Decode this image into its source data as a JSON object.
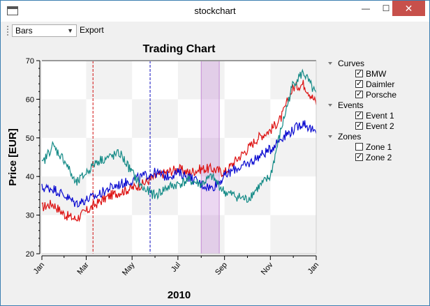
{
  "window": {
    "title": "stockchart",
    "close_glyph": "✕",
    "minimize_glyph": "—",
    "maximize_glyph": "☐"
  },
  "toolbar": {
    "combo_value": "Bars",
    "export_label": "Export"
  },
  "legend": {
    "groups": [
      {
        "label": "Curves",
        "items": [
          {
            "label": "BMW",
            "checked": true
          },
          {
            "label": "Daimler",
            "checked": true
          },
          {
            "label": "Porsche",
            "checked": true
          }
        ]
      },
      {
        "label": "Events",
        "items": [
          {
            "label": "Event 1",
            "checked": true
          },
          {
            "label": "Event 2",
            "checked": true
          }
        ]
      },
      {
        "label": "Zones",
        "items": [
          {
            "label": "Zone 1",
            "checked": false
          },
          {
            "label": "Zone 2",
            "checked": true
          }
        ]
      }
    ]
  },
  "chart_data": {
    "type": "line",
    "title": "Trading Chart",
    "xlabel": "2010",
    "ylabel": "Price [EUR]",
    "xlim": [
      "2010-01-01",
      "2011-01-01"
    ],
    "ylim": [
      20,
      70
    ],
    "x_ticks": [
      "Jan",
      "Mar",
      "May",
      "Jul",
      "Sep",
      "Nov",
      "Jan"
    ],
    "x_tick_dates": [
      "2010-01-01",
      "2010-03-01",
      "2010-05-01",
      "2010-07-01",
      "2010-09-01",
      "2010-11-01",
      "2011-01-01"
    ],
    "y_ticks": [
      20,
      30,
      40,
      50,
      60,
      70
    ],
    "events": [
      {
        "name": "Event 1",
        "date": "2010-03-10",
        "color": "#d01010"
      },
      {
        "name": "Event 2",
        "date": "2010-05-25",
        "color": "#1010c0"
      }
    ],
    "zones": [
      {
        "name": "Zone 2",
        "start": "2010-08-01",
        "end": "2010-08-25",
        "color": "#c58bd6"
      }
    ],
    "series": [
      {
        "name": "BMW",
        "color": "#dd1111",
        "points": [
          [
            "2010-01-01",
            32
          ],
          [
            "2010-01-15",
            33
          ],
          [
            "2010-02-01",
            30
          ],
          [
            "2010-02-15",
            29
          ],
          [
            "2010-03-01",
            31
          ],
          [
            "2010-03-15",
            33
          ],
          [
            "2010-04-01",
            35
          ],
          [
            "2010-04-15",
            36
          ],
          [
            "2010-05-01",
            37
          ],
          [
            "2010-05-15",
            38
          ],
          [
            "2010-06-01",
            40
          ],
          [
            "2010-06-15",
            41
          ],
          [
            "2010-07-01",
            42
          ],
          [
            "2010-07-15",
            41
          ],
          [
            "2010-08-01",
            42
          ],
          [
            "2010-08-15",
            42
          ],
          [
            "2010-09-01",
            41
          ],
          [
            "2010-09-15",
            44
          ],
          [
            "2010-10-01",
            47
          ],
          [
            "2010-10-15",
            50
          ],
          [
            "2010-11-01",
            52
          ],
          [
            "2010-11-15",
            55
          ],
          [
            "2010-12-01",
            63
          ],
          [
            "2010-12-15",
            64
          ],
          [
            "2011-01-01",
            59
          ]
        ]
      },
      {
        "name": "Daimler",
        "color": "#0a0ad0",
        "points": [
          [
            "2010-01-01",
            37
          ],
          [
            "2010-01-15",
            37
          ],
          [
            "2010-02-01",
            35
          ],
          [
            "2010-02-15",
            33
          ],
          [
            "2010-03-01",
            34
          ],
          [
            "2010-03-15",
            35
          ],
          [
            "2010-04-01",
            37
          ],
          [
            "2010-04-15",
            38
          ],
          [
            "2010-05-01",
            39
          ],
          [
            "2010-05-15",
            40
          ],
          [
            "2010-06-01",
            41
          ],
          [
            "2010-06-15",
            40
          ],
          [
            "2010-07-01",
            41
          ],
          [
            "2010-07-15",
            40
          ],
          [
            "2010-08-01",
            38
          ],
          [
            "2010-08-15",
            37
          ],
          [
            "2010-09-01",
            40
          ],
          [
            "2010-09-15",
            42
          ],
          [
            "2010-10-01",
            43
          ],
          [
            "2010-10-15",
            45
          ],
          [
            "2010-11-01",
            47
          ],
          [
            "2010-11-15",
            50
          ],
          [
            "2010-12-01",
            52
          ],
          [
            "2010-12-15",
            54
          ],
          [
            "2011-01-01",
            51
          ]
        ]
      },
      {
        "name": "Porsche",
        "color": "#138a86",
        "points": [
          [
            "2010-01-01",
            43
          ],
          [
            "2010-01-15",
            48
          ],
          [
            "2010-02-01",
            44
          ],
          [
            "2010-02-15",
            38
          ],
          [
            "2010-03-01",
            41
          ],
          [
            "2010-03-15",
            44
          ],
          [
            "2010-04-01",
            45
          ],
          [
            "2010-04-15",
            46
          ],
          [
            "2010-05-01",
            41
          ],
          [
            "2010-05-15",
            37
          ],
          [
            "2010-06-01",
            35
          ],
          [
            "2010-06-15",
            37
          ],
          [
            "2010-07-01",
            38
          ],
          [
            "2010-07-15",
            39
          ],
          [
            "2010-08-01",
            38
          ],
          [
            "2010-08-15",
            40
          ],
          [
            "2010-09-01",
            36
          ],
          [
            "2010-09-15",
            35
          ],
          [
            "2010-10-01",
            34
          ],
          [
            "2010-10-15",
            37
          ],
          [
            "2010-11-01",
            40
          ],
          [
            "2010-11-15",
            52
          ],
          [
            "2010-12-01",
            64
          ],
          [
            "2010-12-15",
            67
          ],
          [
            "2011-01-01",
            61
          ]
        ]
      }
    ]
  }
}
